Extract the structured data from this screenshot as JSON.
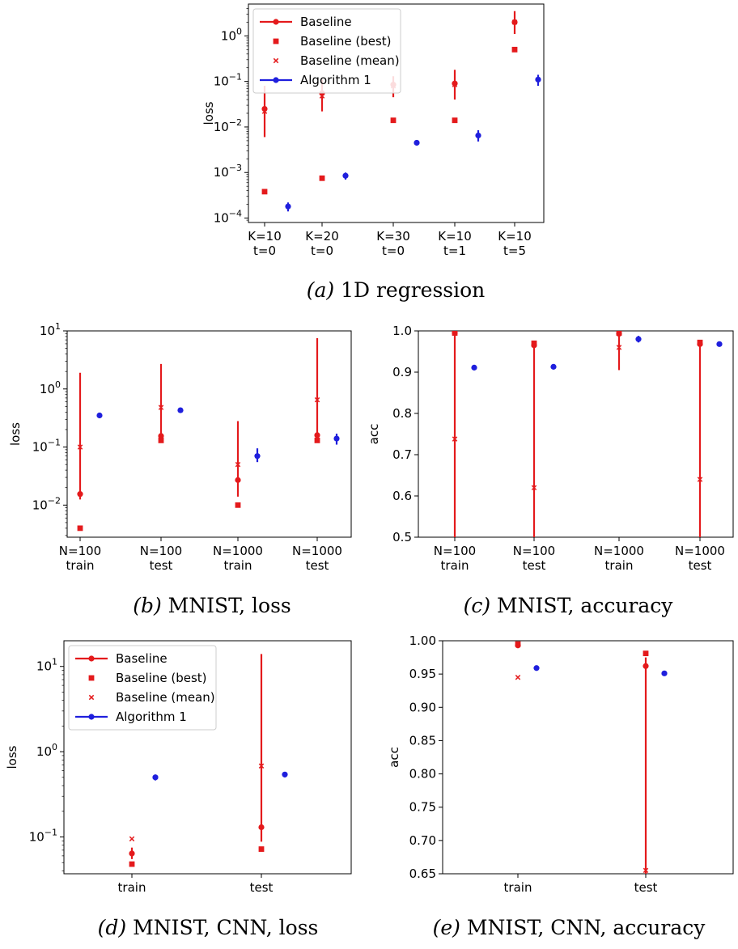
{
  "colors": {
    "baseline": "#e41a1c",
    "algorithm": "#1f1fdd"
  },
  "legend": {
    "baseline": "Baseline",
    "best": "Baseline (best)",
    "mean": "Baseline (mean)",
    "algorithm": "Algorithm 1"
  },
  "chart_data": [
    {
      "id": "a",
      "type": "scatter",
      "caption_label": "(a)",
      "caption_text": " 1D regression",
      "ylabel": "loss",
      "yscale": "log",
      "ylim": [
        8e-05,
        5
      ],
      "legend_position": "top-left",
      "y_ticks": [
        {
          "v": 0.0001,
          "b": "10",
          "e": "−4"
        },
        {
          "v": 0.001,
          "b": "10",
          "e": "−3"
        },
        {
          "v": 0.01,
          "b": "10",
          "e": "−2"
        },
        {
          "v": 0.1,
          "b": "10",
          "e": "−1"
        },
        {
          "v": 1,
          "b": "10",
          "e": "0"
        }
      ],
      "categories": [
        [
          "K=10",
          "t=0"
        ],
        [
          "K=20",
          "t=0"
        ],
        [
          "K=30",
          "t=0"
        ],
        [
          "K=10",
          "t=1"
        ],
        [
          "K=10",
          "t=5"
        ]
      ],
      "baseline": {
        "median": [
          0.025,
          0.055,
          0.085,
          0.09,
          2.0
        ],
        "low": [
          0.006,
          0.022,
          0.045,
          0.04,
          1.1
        ],
        "high": [
          0.08,
          0.11,
          0.13,
          0.18,
          3.5
        ],
        "best": [
          0.00038,
          0.00075,
          0.014,
          0.014,
          0.5
        ],
        "mean": [
          0.022,
          0.048,
          0.08,
          0.085,
          2.0
        ]
      },
      "algorithm": {
        "median": [
          0.00018,
          0.00085,
          0.0045,
          0.0065,
          0.11
        ],
        "low": [
          0.00014,
          0.0007,
          0.0043,
          0.0048,
          0.08
        ],
        "high": [
          0.00022,
          0.001,
          0.0047,
          0.0085,
          0.14
        ]
      }
    },
    {
      "id": "b",
      "type": "scatter",
      "caption_label": "(b)",
      "caption_text": " MNIST, loss",
      "ylabel": "loss",
      "yscale": "log",
      "ylim": [
        0.0028,
        10
      ],
      "legend_position": "",
      "y_ticks": [
        {
          "v": 0.01,
          "b": "10",
          "e": "−2"
        },
        {
          "v": 0.1,
          "b": "10",
          "e": "−1"
        },
        {
          "v": 1,
          "b": "10",
          "e": "0"
        },
        {
          "v": 10,
          "b": "10",
          "e": "1"
        }
      ],
      "categories": [
        [
          "N=100",
          "train"
        ],
        [
          "N=100",
          "test"
        ],
        [
          "N=1000",
          "train"
        ],
        [
          "N=1000",
          "test"
        ]
      ],
      "baseline": {
        "median": [
          0.0155,
          0.155,
          0.027,
          0.16
        ],
        "low": [
          0.0125,
          0.13,
          0.014,
          0.13
        ],
        "high": [
          1.9,
          2.7,
          0.28,
          7.5
        ],
        "best": [
          0.004,
          0.13,
          0.01,
          0.13
        ],
        "mean": [
          0.1,
          0.48,
          0.05,
          0.65
        ]
      },
      "algorithm": {
        "median": [
          0.35,
          0.43,
          0.07,
          0.14
        ],
        "low": [
          0.32,
          0.39,
          0.055,
          0.11
        ],
        "high": [
          0.38,
          0.47,
          0.095,
          0.17
        ]
      }
    },
    {
      "id": "c",
      "type": "scatter",
      "caption_label": "(c)",
      "caption_text": " MNIST, accuracy",
      "ylabel": "acc",
      "yscale": "linear",
      "ylim": [
        0.5,
        1.0
      ],
      "legend_position": "",
      "y_ticks": [
        {
          "v": 0.5,
          "t": "0.5"
        },
        {
          "v": 0.6,
          "t": "0.6"
        },
        {
          "v": 0.7,
          "t": "0.7"
        },
        {
          "v": 0.8,
          "t": "0.8"
        },
        {
          "v": 0.9,
          "t": "0.9"
        },
        {
          "v": 1.0,
          "t": "1.0"
        }
      ],
      "categories": [
        [
          "N=100",
          "train"
        ],
        [
          "N=100",
          "test"
        ],
        [
          "N=1000",
          "train"
        ],
        [
          "N=1000",
          "test"
        ]
      ],
      "baseline": {
        "median": [
          0.995,
          0.965,
          0.993,
          0.968
        ],
        "low": [
          0.5,
          0.5,
          0.905,
          0.5
        ],
        "high": [
          1.0,
          0.97,
          0.997,
          0.975
        ],
        "best": [
          0.995,
          0.97,
          0.995,
          0.972
        ],
        "mean": [
          0.738,
          0.62,
          0.96,
          0.64
        ]
      },
      "algorithm": {
        "median": [
          0.911,
          0.913,
          0.98,
          0.968
        ],
        "low": [
          0.905,
          0.908,
          0.972,
          0.962
        ],
        "high": [
          0.917,
          0.918,
          0.988,
          0.974
        ]
      }
    },
    {
      "id": "d",
      "type": "scatter",
      "caption_label": "(d)",
      "caption_text": " MNIST, CNN, loss",
      "ylabel": "loss",
      "yscale": "log",
      "ylim": [
        0.037,
        20
      ],
      "legend_position": "top-left",
      "y_ticks": [
        {
          "v": 0.1,
          "b": "10",
          "e": "−1"
        },
        {
          "v": 1,
          "b": "10",
          "e": "0"
        },
        {
          "v": 10,
          "b": "10",
          "e": "1"
        }
      ],
      "categories": [
        [
          "train"
        ],
        [
          "test"
        ]
      ],
      "baseline": {
        "median": [
          0.064,
          0.13
        ],
        "low": [
          0.055,
          0.088
        ],
        "high": [
          0.075,
          14
        ],
        "best": [
          0.048,
          0.072
        ],
        "mean": [
          0.095,
          0.68
        ]
      },
      "algorithm": {
        "median": [
          0.5,
          0.54
        ],
        "low": [
          0.46,
          0.5
        ],
        "high": [
          0.54,
          0.58
        ]
      }
    },
    {
      "id": "e",
      "type": "scatter",
      "caption_label": "(e)",
      "caption_text": " MNIST, CNN, accuracy",
      "ylabel": "acc",
      "yscale": "linear",
      "ylim": [
        0.65,
        1.0
      ],
      "legend_position": "",
      "y_ticks": [
        {
          "v": 0.65,
          "t": "0.65"
        },
        {
          "v": 0.7,
          "t": "0.70"
        },
        {
          "v": 0.75,
          "t": "0.75"
        },
        {
          "v": 0.8,
          "t": "0.80"
        },
        {
          "v": 0.85,
          "t": "0.85"
        },
        {
          "v": 0.9,
          "t": "0.90"
        },
        {
          "v": 0.95,
          "t": "0.95"
        },
        {
          "v": 1.0,
          "t": "1.00"
        }
      ],
      "categories": [
        [
          "train"
        ],
        [
          "test"
        ]
      ],
      "baseline": {
        "median": [
          0.993,
          0.962
        ],
        "low": [
          0.99,
          0.65
        ],
        "high": [
          0.997,
          0.975
        ],
        "best": [
          0.995,
          0.981
        ],
        "mean": [
          0.945,
          0.655
        ]
      },
      "algorithm": {
        "median": [
          0.959,
          0.951
        ],
        "low": [
          0.957,
          0.949
        ],
        "high": [
          0.961,
          0.953
        ]
      }
    }
  ]
}
